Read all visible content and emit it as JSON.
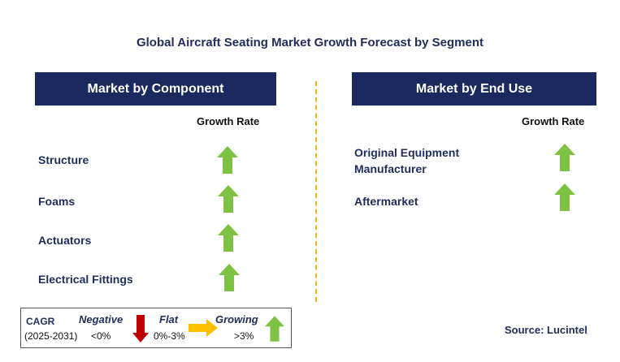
{
  "title": "Global Aircraft Seating Market Growth Forecast by Segment",
  "left_panel": {
    "header": "Market by Component",
    "growth_label": "Growth Rate",
    "segments": [
      {
        "label": "Structure",
        "trend": "growing",
        "icon": "up-arrow-green-icon"
      },
      {
        "label": "Foams",
        "trend": "growing",
        "icon": "up-arrow-green-icon"
      },
      {
        "label": "Actuators",
        "trend": "growing",
        "icon": "up-arrow-green-icon"
      },
      {
        "label": "Electrical Fittings",
        "trend": "growing",
        "icon": "up-arrow-green-icon"
      }
    ]
  },
  "right_panel": {
    "header": "Market by End Use",
    "growth_label": "Growth Rate",
    "segments": [
      {
        "label_line1": "Original Equipment",
        "label_line2": "Manufacturer",
        "trend": "growing",
        "icon": "up-arrow-green-icon"
      },
      {
        "label_line1": "Aftermarket",
        "trend": "growing",
        "icon": "up-arrow-green-icon"
      }
    ]
  },
  "legend": {
    "cagr_label": "CAGR",
    "period": "(2025-2031)",
    "negative": {
      "label": "Negative",
      "range": "<0%",
      "icon": "down-arrow-red-icon"
    },
    "flat": {
      "label": "Flat",
      "range": "0%-3%",
      "icon": "right-arrow-yellow-icon"
    },
    "growing": {
      "label": "Growing",
      "range": ">3%",
      "icon": "up-arrow-green-icon"
    }
  },
  "source": "Source: Lucintel",
  "colors": {
    "header_bg": "#1b2a5e",
    "title_text": "#1f2d5c",
    "growing": "#7dc242",
    "negative": "#c00000",
    "flat": "#ffc000",
    "divider": "#f0b323"
  }
}
